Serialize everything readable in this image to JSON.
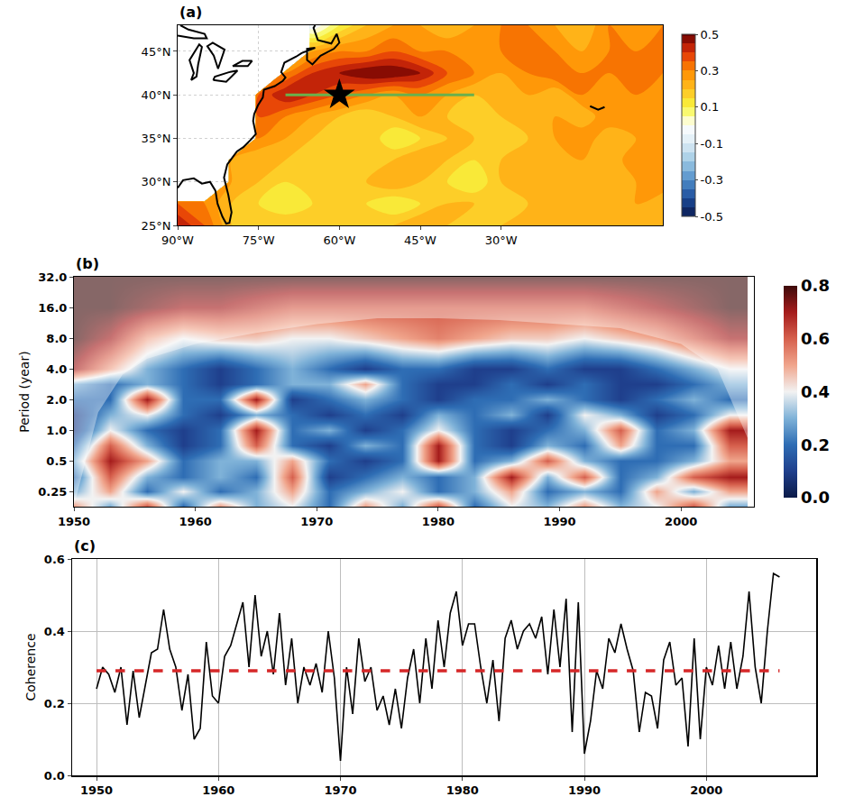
{
  "chart_data": [
    {
      "type": "contour_map",
      "title": "(a)",
      "x": [
        -90,
        -85,
        -80,
        -75,
        -70,
        -65,
        -60,
        -55,
        -50,
        -45,
        -40,
        -35,
        -30,
        -25,
        -20,
        -15,
        -10,
        -5,
        0
      ],
      "y": [
        25,
        27.5,
        30,
        32.5,
        35,
        37.5,
        40,
        42.5,
        45,
        48
      ],
      "z": [
        [
          0.45,
          0.35,
          0.2,
          0.15,
          0.2,
          0.15,
          0.2,
          0.15,
          0.2,
          0.25,
          0.2,
          0.15,
          0.2,
          0.25,
          0.2,
          0.2,
          0.25,
          0.2,
          0.2
        ],
        [
          0.35,
          0.3,
          0.2,
          0.15,
          0.1,
          0.15,
          0.2,
          0.15,
          0.1,
          0.15,
          0.2,
          0.2,
          0.15,
          0.2,
          0.25,
          0.2,
          0.2,
          0.25,
          0.2
        ],
        [
          null,
          null,
          0.25,
          0.2,
          0.15,
          0.2,
          0.15,
          0.2,
          0.25,
          0.2,
          0.15,
          0.1,
          0.2,
          0.2,
          0.25,
          0.2,
          0.2,
          0.25,
          0.3
        ],
        [
          null,
          null,
          0.25,
          0.2,
          0.2,
          0.15,
          0.2,
          0.15,
          0.2,
          0.25,
          0.2,
          0.15,
          0.2,
          0.25,
          0.2,
          0.25,
          0.2,
          0.3,
          0.25
        ],
        [
          null,
          null,
          null,
          0.3,
          0.25,
          0.2,
          0.15,
          0.2,
          0.1,
          0.15,
          0.2,
          0.2,
          0.15,
          0.2,
          0.25,
          0.3,
          0.2,
          0.25,
          0.3
        ],
        [
          null,
          null,
          null,
          0.35,
          0.3,
          0.25,
          0.2,
          0.15,
          0.2,
          0.25,
          0.2,
          0.15,
          0.2,
          0.2,
          0.25,
          0.2,
          0.3,
          0.25,
          0.3
        ],
        [
          null,
          null,
          null,
          0.35,
          0.45,
          0.4,
          0.35,
          0.3,
          0.25,
          0.3,
          0.25,
          0.2,
          0.2,
          0.25,
          0.2,
          0.3,
          0.25,
          0.3,
          0.25
        ],
        [
          null,
          null,
          null,
          null,
          0.3,
          0.4,
          0.45,
          0.5,
          0.5,
          0.45,
          0.35,
          0.3,
          0.25,
          0.3,
          0.35,
          0.3,
          0.3,
          0.35,
          0.3
        ],
        [
          null,
          null,
          null,
          null,
          null,
          0.25,
          0.3,
          0.3,
          0.35,
          0.3,
          0.3,
          0.25,
          0.3,
          0.35,
          0.3,
          0.25,
          0.3,
          0.3,
          0.35
        ],
        [
          null,
          null,
          null,
          null,
          null,
          -0.05,
          0.1,
          0.2,
          0.25,
          0.25,
          0.2,
          0.25,
          0.3,
          0.3,
          0.25,
          0.2,
          0.3,
          0.25,
          0.3
        ]
      ],
      "colors": [
        "#0a1a4f",
        "#1c4c9a",
        "#4f8dc9",
        "#9ec9e4",
        "#dcecf5",
        "#ffffff",
        "#f7f740",
        "#ffc020",
        "#ff8a00",
        "#e0300a",
        "#6b0000"
      ],
      "colorbar_range": [
        -0.5,
        0.5
      ],
      "colorbar_ticks": [
        -0.5,
        -0.3,
        -0.1,
        0.1,
        0.3,
        0.5
      ],
      "xlim": [
        -90,
        0
      ],
      "ylim": [
        25,
        48
      ],
      "xticks": [
        {
          "value": -90,
          "label": "90°W"
        },
        {
          "value": -75,
          "label": "75°W"
        },
        {
          "value": -60,
          "label": "60°W"
        },
        {
          "value": -45,
          "label": "45°W"
        },
        {
          "value": -30,
          "label": "30°W"
        }
      ],
      "yticks": [
        {
          "value": 25,
          "label": "25°N"
        },
        {
          "value": 30,
          "label": "30°N"
        },
        {
          "value": 35,
          "label": "35°N"
        },
        {
          "value": 40,
          "label": "40°N"
        },
        {
          "value": 45,
          "label": "45°N"
        }
      ],
      "grid": true,
      "coastline": {
        "x": [
          -90,
          -89,
          -87,
          -85.5,
          -84,
          -83,
          -82.6,
          -81.7,
          -81,
          -80.4,
          -80,
          -80.6,
          -81.4,
          -80.8,
          -79,
          -77.8,
          -76.5,
          -75.5,
          -76,
          -75.8,
          -75.1,
          -74.2,
          -74,
          -72,
          -70.5,
          -70,
          -70.8,
          -70.2,
          -68,
          -67,
          -64.5,
          -66,
          -66,
          -65,
          -63.5,
          -61,
          -60,
          -60.5,
          -61.5,
          -64,
          -64.8,
          -64.5,
          null,
          -79.8,
          -77,
          -76.2,
          -78,
          -79.8,
          null,
          -83.4,
          -81,
          -78.9,
          -80.5,
          -83.1,
          -83.4,
          null,
          -82.5,
          -81.7,
          -81.3,
          -83.5,
          -84.5,
          -83.3,
          -82.5,
          null,
          -87.5,
          -87,
          -87.8,
          -86,
          -85.5,
          -86.2,
          -86.5,
          -87.5,
          null,
          -90,
          -87,
          -84.6,
          -85,
          -88,
          -89.5,
          null,
          -13.5,
          -12,
          -10.8
        ],
        "y": [
          29.3,
          30.2,
          30.4,
          29.8,
          30,
          29,
          27.5,
          26,
          25.2,
          25.3,
          26.5,
          28.5,
          30.5,
          32,
          33.5,
          34,
          34.8,
          35.5,
          37,
          37.8,
          38.8,
          39.7,
          40.6,
          41,
          41.6,
          42,
          42.6,
          43.7,
          44.4,
          44.8,
          45.4,
          45.3,
          44,
          43.5,
          44.5,
          45.3,
          46,
          47,
          45.9,
          46.3,
          47.7,
          48,
          null,
          43.3,
          43.3,
          43.9,
          43.9,
          43.3,
          null,
          41.7,
          41.5,
          42.8,
          42.6,
          42.1,
          41.7,
          null,
          43,
          44.5,
          45.2,
          46,
          45.6,
          44.5,
          43,
          null,
          41.7,
          42.5,
          44,
          45.8,
          45.5,
          43.5,
          42.1,
          41.7,
          null,
          46.8,
          46.5,
          46.5,
          47,
          47.5,
          48,
          null,
          38.7,
          38.3,
          38.6
        ]
      },
      "series": [
        {
          "type": "line",
          "color": "#6ab04c",
          "x": [
            -70,
            -35
          ],
          "values": [
            40,
            40
          ]
        },
        {
          "type": "scatter",
          "marker": "star",
          "color": "#000000",
          "x": [
            -60
          ],
          "values": [
            40
          ]
        }
      ]
    },
    {
      "type": "heatmap",
      "title": "(b)",
      "ylabel": "Period (year)",
      "log": "y",
      "x": [
        1950,
        1953,
        1956,
        1959,
        1962,
        1965,
        1968,
        1971,
        1974,
        1977,
        1980,
        1983,
        1986,
        1989,
        1992,
        1995,
        1998,
        2001,
        2004
      ],
      "y": [
        0.18,
        0.25,
        0.35,
        0.5,
        0.71,
        1,
        1.41,
        2,
        2.83,
        4,
        8,
        16,
        32
      ],
      "z": [
        [
          0.5,
          0.3,
          0.6,
          0.2,
          0.5,
          0.3,
          0.4,
          0.2,
          0.5,
          0.3,
          0.6,
          0.2,
          0.4,
          0.3,
          0.5,
          0.3,
          0.4,
          0.6,
          0.3
        ],
        [
          0.3,
          0.5,
          0.2,
          0.4,
          0.2,
          0.3,
          0.5,
          0.2,
          0.3,
          0.4,
          0.2,
          0.3,
          0.5,
          0.2,
          0.3,
          0.2,
          0.5,
          0.3,
          0.5
        ],
        [
          0.2,
          0.6,
          0.3,
          0.2,
          0.3,
          0.2,
          0.6,
          0.1,
          0.2,
          0.3,
          0.2,
          0.3,
          0.7,
          0.3,
          0.6,
          0.2,
          0.3,
          0.6,
          0.7
        ],
        [
          0.3,
          0.7,
          0.5,
          0.2,
          0.3,
          0.3,
          0.5,
          0.2,
          0.1,
          0.2,
          0.7,
          0.2,
          0.3,
          0.6,
          0.3,
          0.2,
          0.2,
          0.3,
          0.5
        ],
        [
          0.2,
          0.6,
          0.3,
          0.1,
          0.2,
          0.6,
          0.2,
          0.1,
          0.3,
          0.2,
          0.7,
          0.2,
          0.1,
          0.3,
          0.2,
          0.5,
          0.2,
          0.2,
          0.6
        ],
        [
          0.1,
          0.4,
          0.2,
          0.1,
          0.2,
          0.7,
          0.2,
          0.3,
          0.1,
          0.2,
          0.4,
          0.2,
          0.1,
          0.2,
          0.3,
          0.6,
          0.2,
          0.3,
          0.7
        ],
        [
          0.1,
          0.3,
          0.4,
          0.2,
          0.1,
          0.3,
          0.2,
          0.1,
          0.2,
          0.1,
          0.3,
          0.2,
          0.3,
          0.1,
          0.4,
          0.3,
          0.1,
          0.2,
          0.4
        ],
        [
          0.2,
          0.2,
          0.7,
          0.2,
          0.2,
          0.7,
          0.1,
          0.2,
          0.3,
          0.2,
          0.1,
          0.2,
          0.2,
          0.3,
          0.2,
          0.1,
          0.2,
          0.3,
          0.2
        ],
        [
          0.3,
          0.2,
          0.3,
          0.2,
          0.1,
          0.2,
          0.3,
          0.3,
          0.5,
          0.2,
          0.1,
          0.1,
          0.2,
          0.1,
          0.2,
          0.1,
          0.1,
          0.2,
          0.3
        ],
        [
          0.7,
          0.5,
          0.3,
          0.2,
          0.1,
          0.2,
          0.3,
          0.2,
          0.1,
          0.2,
          0.2,
          0.1,
          0.1,
          0.2,
          0.1,
          0.1,
          0.2,
          0.3,
          0.4
        ],
        [
          0.8,
          0.7,
          0.5,
          0.4,
          0.45,
          0.45,
          0.4,
          0.4,
          0.45,
          0.5,
          0.55,
          0.5,
          0.45,
          0.45,
          0.4,
          0.45,
          0.5,
          0.6,
          0.7
        ],
        [
          0.8,
          0.8,
          0.75,
          0.7,
          0.7,
          0.65,
          0.6,
          0.6,
          0.6,
          0.6,
          0.6,
          0.6,
          0.6,
          0.6,
          0.6,
          0.65,
          0.7,
          0.75,
          0.8
        ],
        [
          0.8,
          0.8,
          0.8,
          0.8,
          0.8,
          0.8,
          0.8,
          0.8,
          0.8,
          0.8,
          0.8,
          0.8,
          0.8,
          0.8,
          0.8,
          0.8,
          0.8,
          0.8,
          0.8
        ]
      ],
      "colors": [
        "#0b1a48",
        "#1f3f8c",
        "#2e6db4",
        "#7fb2d8",
        "#f2f2f2",
        "#f0a58c",
        "#d6604d",
        "#a51c1c",
        "#3d0a0a"
      ],
      "colorbar_range": [
        0,
        0.8
      ],
      "colorbar_ticks": [
        {
          "value": 0,
          "label": "0.0"
        },
        0.2,
        0.4,
        0.6,
        0.8
      ],
      "coi": {
        "x": [
          1950,
          1952,
          1954,
          1956,
          1960,
          1965,
          1970,
          1975,
          1980,
          1985,
          1990,
          1995,
          2000,
          2003,
          2006
        ],
        "values": [
          0.18,
          1.5,
          3.5,
          5,
          7,
          9,
          11,
          12.5,
          12.5,
          12,
          11,
          10,
          7,
          4,
          0.6
        ]
      },
      "xlim": [
        1950,
        2006
      ],
      "ylim": [
        0.177,
        32
      ],
      "xticks": [
        1950,
        1960,
        1970,
        1980,
        1990,
        2000
      ],
      "yticks": [
        0.25,
        0.5,
        {
          "value": 1,
          "label": "1.0"
        },
        {
          "value": 2,
          "label": "2.0"
        },
        {
          "value": 4,
          "label": "4.0"
        },
        {
          "value": 8,
          "label": "8.0"
        },
        {
          "value": 16,
          "label": "16.0"
        },
        {
          "value": 32,
          "label": "32.0"
        }
      ]
    },
    {
      "type": "line",
      "title": "(c)",
      "ylabel": "Coherence",
      "x": [
        1950,
        1950.5,
        1951,
        1951.5,
        1952,
        1952.5,
        1953,
        1953.5,
        1954,
        1954.5,
        1955,
        1955.5,
        1956,
        1956.5,
        1957,
        1957.5,
        1958,
        1958.5,
        1959,
        1959.5,
        1960,
        1960.5,
        1961,
        1961.5,
        1962,
        1962.5,
        1963,
        1963.5,
        1964,
        1964.5,
        1965,
        1965.5,
        1966,
        1966.5,
        1967,
        1967.5,
        1968,
        1968.5,
        1969,
        1969.5,
        1970,
        1970.5,
        1971,
        1971.5,
        1972,
        1972.5,
        1973,
        1973.5,
        1974,
        1974.5,
        1975,
        1975.5,
        1976,
        1976.5,
        1977,
        1977.5,
        1978,
        1978.5,
        1979,
        1979.5,
        1980,
        1980.5,
        1981,
        1981.5,
        1982,
        1982.5,
        1983,
        1983.5,
        1984,
        1984.5,
        1985,
        1985.5,
        1986,
        1986.5,
        1987,
        1987.5,
        1988,
        1988.5,
        1989,
        1989.5,
        1990,
        1990.5,
        1991,
        1991.5,
        1992,
        1992.5,
        1993,
        1993.5,
        1994,
        1994.5,
        1995,
        1995.5,
        1996,
        1996.5,
        1997,
        1997.5,
        1998,
        1998.5,
        1999,
        1999.5,
        2000,
        2000.5,
        2001,
        2001.5,
        2002,
        2002.5,
        2003,
        2003.5,
        2004,
        2004.5,
        2005,
        2005.5,
        2006
      ],
      "series": [
        {
          "color": "#000000",
          "values": [
            0.24,
            0.3,
            0.28,
            0.23,
            0.3,
            0.14,
            0.29,
            0.16,
            0.25,
            0.34,
            0.35,
            0.46,
            0.35,
            0.3,
            0.18,
            0.28,
            0.1,
            0.13,
            0.37,
            0.22,
            0.2,
            0.33,
            0.36,
            0.42,
            0.48,
            0.3,
            0.5,
            0.33,
            0.4,
            0.28,
            0.45,
            0.25,
            0.38,
            0.2,
            0.3,
            0.25,
            0.31,
            0.23,
            0.4,
            0.27,
            0.04,
            0.3,
            0.17,
            0.38,
            0.26,
            0.3,
            0.18,
            0.22,
            0.14,
            0.24,
            0.13,
            0.27,
            0.35,
            0.2,
            0.38,
            0.24,
            0.43,
            0.3,
            0.45,
            0.51,
            0.36,
            0.42,
            0.42,
            0.3,
            0.2,
            0.32,
            0.15,
            0.38,
            0.43,
            0.35,
            0.4,
            0.42,
            0.38,
            0.44,
            0.28,
            0.46,
            0.3,
            0.49,
            0.12,
            0.48,
            0.06,
            0.15,
            0.29,
            0.24,
            0.38,
            0.34,
            0.42,
            0.35,
            0.29,
            0.12,
            0.23,
            0.22,
            0.13,
            0.32,
            0.37,
            0.25,
            0.27,
            0.08,
            0.38,
            0.1,
            0.3,
            0.25,
            0.36,
            0.24,
            0.37,
            0.24,
            0.33,
            0.51,
            0.3,
            0.2,
            0.4,
            0.56,
            0.55
          ]
        },
        {
          "color": "#d62728",
          "line_style": "dashed",
          "x": [
            1950,
            2006
          ],
          "values": [
            0.29,
            0.29
          ]
        }
      ],
      "xlim": [
        1948,
        2009
      ],
      "ylim": [
        0,
        0.6
      ],
      "xticks": [
        1950,
        1960,
        1970,
        1980,
        1990,
        2000
      ],
      "yticks": [
        {
          "value": 0,
          "label": "0.0"
        },
        0.2,
        0.4,
        0.6
      ],
      "grid": true
    }
  ]
}
